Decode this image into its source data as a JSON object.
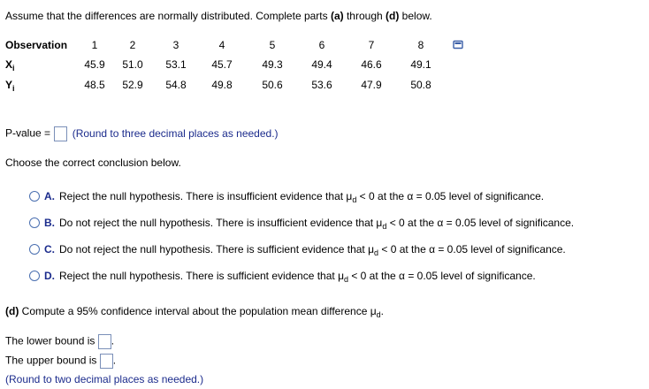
{
  "prompt": "Assume that the differences are normally distributed. Complete parts ",
  "prompt_a": "(a)",
  "prompt_through": " through ",
  "prompt_d": "(d)",
  "prompt_end": " below.",
  "table": {
    "headers": [
      "Observation",
      "1",
      "2",
      "3",
      "4",
      "5",
      "6",
      "7",
      "8"
    ],
    "x_label": "X",
    "x_sub": "i",
    "x_values": [
      "45.9",
      "51.0",
      "53.1",
      "45.7",
      "49.3",
      "49.4",
      "46.6",
      "49.1"
    ],
    "y_label": "Y",
    "y_sub": "i",
    "y_values": [
      "48.5",
      "52.9",
      "54.8",
      "49.8",
      "50.6",
      "53.6",
      "47.9",
      "50.8"
    ]
  },
  "pvalue": {
    "label": "P-value =",
    "hint": "(Round to three decimal places as needed.)"
  },
  "choose_text": "Choose the correct conclusion below.",
  "options": [
    {
      "letter": "A.",
      "pre": "Reject the null hypothesis. There is insufficient evidence that μ",
      "sub": "d",
      "post": " < 0 at the α = 0.05 level of significance."
    },
    {
      "letter": "B.",
      "pre": "Do not reject the null hypothesis. There is insufficient evidence that μ",
      "sub": "d",
      "post": " < 0 at the α = 0.05 level of significance."
    },
    {
      "letter": "C.",
      "pre": "Do not reject the null hypothesis. There is sufficient evidence that μ",
      "sub": "d",
      "post": " < 0 at the α = 0.05 level of significance."
    },
    {
      "letter": "D.",
      "pre": "Reject the null hypothesis. There is sufficient evidence that μ",
      "sub": "d",
      "post": " < 0 at the α = 0.05 level of significance."
    }
  ],
  "part_d": {
    "label": "(d)",
    "text": " Compute a 95% confidence interval about the population mean difference μ",
    "sub": "d",
    "end": "."
  },
  "lower_label": "The lower bound is",
  "upper_label": "The upper bound is",
  "round_hint": "(Round to two decimal places as needed.)"
}
